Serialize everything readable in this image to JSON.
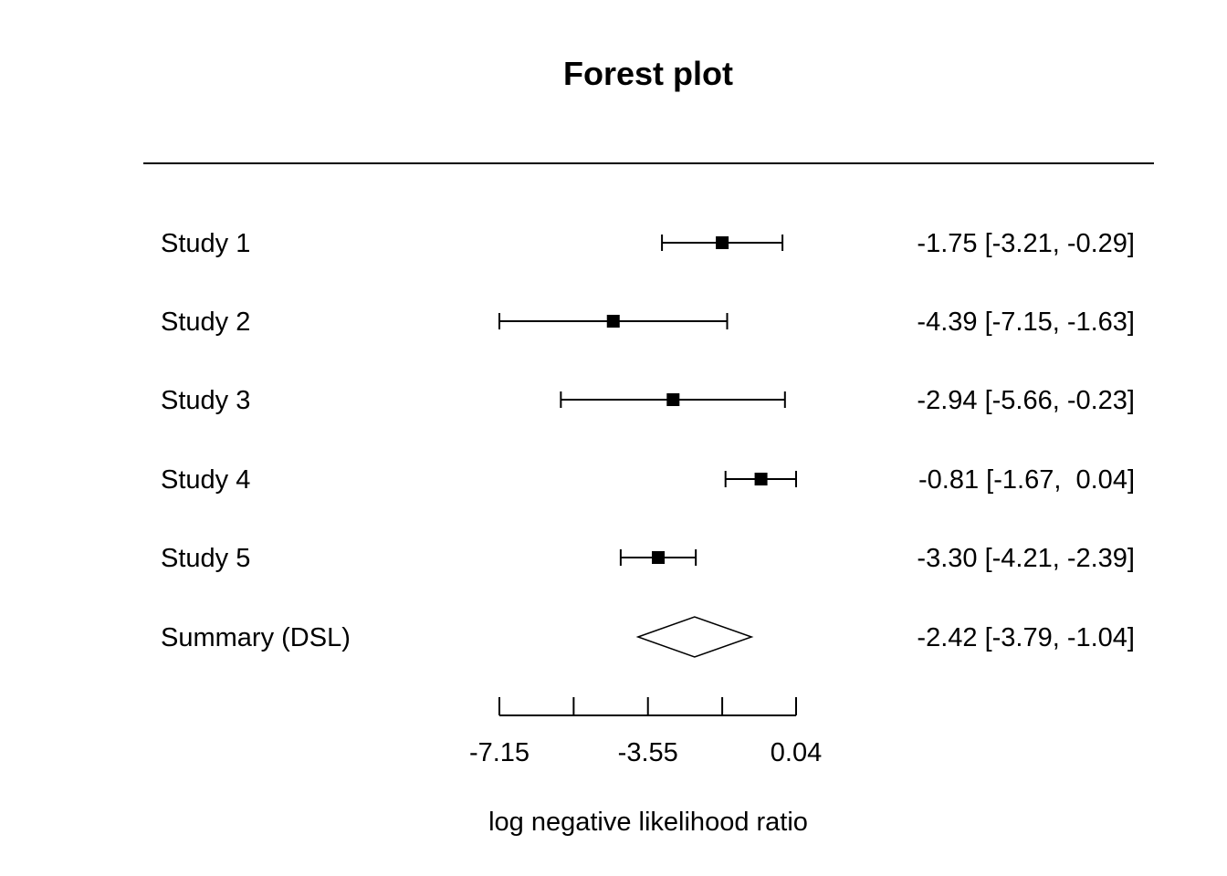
{
  "chart_data": {
    "type": "forest",
    "title": "Forest plot",
    "xlabel": "log negative likelihood ratio",
    "xlim": [
      -7.15,
      0.04
    ],
    "x_ticks": [
      -7.15,
      -5.35,
      -3.55,
      -1.75,
      0.04
    ],
    "x_tick_labels": [
      "-7.15",
      "",
      "-3.55",
      "",
      "0.04"
    ],
    "studies": [
      {
        "label": "Study 1",
        "estimate": -1.75,
        "lower": -3.21,
        "upper": -0.29,
        "ci_text": "-1.75 [-3.21, -0.29]"
      },
      {
        "label": "Study 2",
        "estimate": -4.39,
        "lower": -7.15,
        "upper": -1.63,
        "ci_text": "-4.39 [-7.15, -1.63]"
      },
      {
        "label": "Study 3",
        "estimate": -2.94,
        "lower": -5.66,
        "upper": -0.23,
        "ci_text": "-2.94 [-5.66, -0.23]"
      },
      {
        "label": "Study 4",
        "estimate": -0.81,
        "lower": -1.67,
        "upper": 0.04,
        "ci_text": "-0.81 [-1.67,  0.04]"
      },
      {
        "label": "Study 5",
        "estimate": -3.3,
        "lower": -4.21,
        "upper": -2.39,
        "ci_text": "-3.30 [-4.21, -2.39]"
      }
    ],
    "summary": {
      "label": "Summary (DSL)",
      "estimate": -2.42,
      "lower": -3.79,
      "upper": -1.04,
      "ci_text": "-2.42 [-3.79, -1.04]"
    }
  }
}
